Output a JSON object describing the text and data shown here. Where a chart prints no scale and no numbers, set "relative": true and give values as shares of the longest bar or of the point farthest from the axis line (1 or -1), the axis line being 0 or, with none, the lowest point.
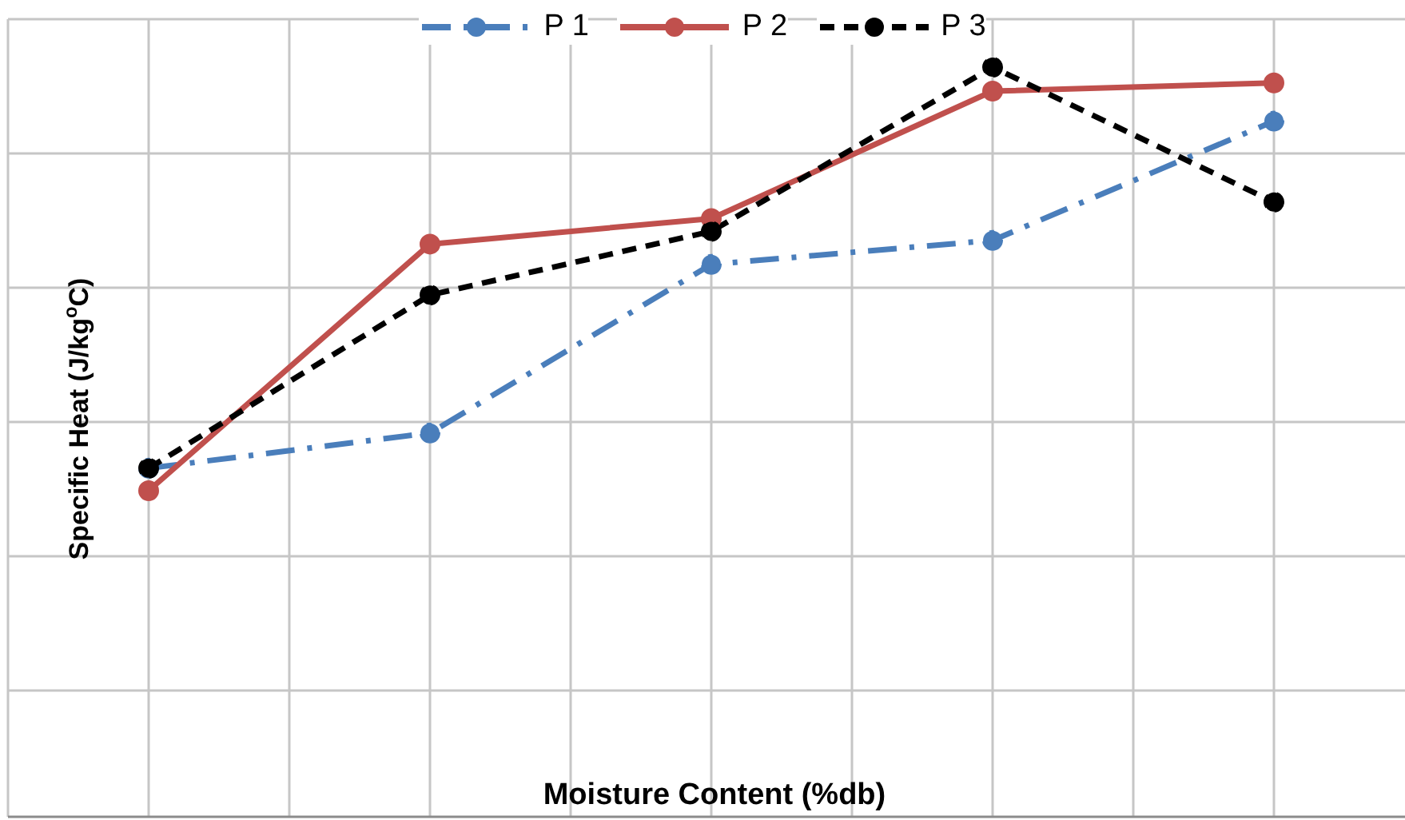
{
  "chart_data": {
    "type": "line",
    "relative": true,
    "xlabel": "Moisture Content (%db)",
    "ylabel": "Specific Heat  (J/kg$^{o}$C)",
    "categories": [
      null,
      null,
      null,
      null,
      null
    ],
    "grid": true,
    "legend": "top",
    "marker": "circle",
    "series": [
      {
        "name": "P 1",
        "color": "#4a7ebb",
        "line_style": "dashdot",
        "values": [
          0.465,
          0.512,
          0.737,
          0.769,
          0.928
        ]
      },
      {
        "name": "P 2",
        "color": "#c0504d",
        "line_style": "solid",
        "values": [
          0.435,
          0.764,
          0.798,
          0.968,
          0.979
        ]
      },
      {
        "name": "P 3",
        "color": "#000000",
        "line_style": "dashed",
        "values": [
          0.465,
          0.696,
          0.781,
          1,
          0.82
        ]
      }
    ]
  }
}
